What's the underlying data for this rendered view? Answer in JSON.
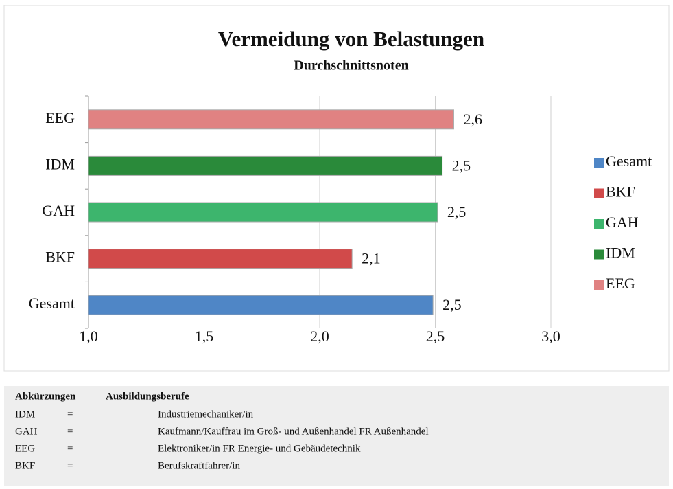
{
  "chart_data": {
    "type": "barh",
    "title": "Vermeidung von Belastungen",
    "subtitle": "Durchschnittsnoten",
    "categories": [
      "Gesamt",
      "BKF",
      "GAH",
      "IDM",
      "EEG"
    ],
    "values": [
      2.49,
      2.14,
      2.51,
      2.53,
      2.58
    ],
    "value_labels": [
      "2,5",
      "2,1",
      "2,5",
      "2,5",
      "2,6"
    ],
    "colors": [
      "#4f86c6",
      "#d14a4a",
      "#3db56d",
      "#2a8a3a",
      "#e08282"
    ],
    "xlim": [
      1,
      3
    ],
    "xticks": [
      {
        "value": 1,
        "label": "1,0"
      },
      {
        "value": 1.5,
        "label": "1,5"
      },
      {
        "value": 2,
        "label": "2,0"
      },
      {
        "value": 2.5,
        "label": "2,5"
      },
      {
        "value": 3,
        "label": "3,0"
      }
    ],
    "grid": true,
    "legend": "right"
  },
  "table": {
    "header": [
      "Abkürzungen",
      "Ausbildungsberufe"
    ],
    "rows": [
      [
        "IDM",
        "=",
        "Industriemechaniker/in"
      ],
      [
        "GAH",
        "=",
        "Kaufmann/Kauffrau im Groß- und Außenhandel FR Außenhandel"
      ],
      [
        "EEG",
        "=",
        "Elektroniker/in FR Energie- und Gebäudetechnik"
      ],
      [
        "BKF",
        "=",
        "Berufskraftfahrer/in"
      ]
    ]
  }
}
